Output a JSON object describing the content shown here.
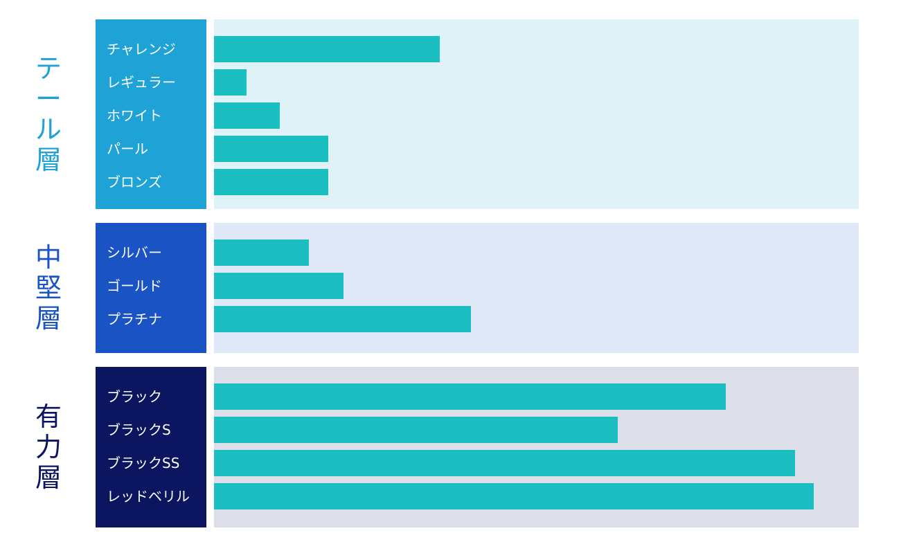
{
  "colors": {
    "bar": "#1bbfc1"
  },
  "chart_data": {
    "type": "bar",
    "orientation": "horizontal",
    "xlim": [
      0,
      100
    ],
    "groups": [
      {
        "title": "テール層",
        "title_color": "#1fa2d6",
        "label_bg": "#1fa2d6",
        "panel_bg": "#dff2f8",
        "categories": [
          "チャレンジ",
          "レギュラー",
          "ホワイト",
          "パール",
          "ブロンズ"
        ],
        "values": [
          35,
          5,
          10.2,
          17.7,
          17.7
        ]
      },
      {
        "title": "中堅層",
        "title_color": "#1a54c4",
        "label_bg": "#1a54c4",
        "panel_bg": "#dee8f6",
        "categories": [
          "シルバー",
          "ゴールド",
          "プラチナ"
        ],
        "values": [
          14.7,
          20.1,
          39.9
        ]
      },
      {
        "title": "有力層",
        "title_color": "#0b1560",
        "label_bg": "#0b1560",
        "panel_bg": "#dcdfea",
        "categories": [
          "ブラック",
          "ブラックS",
          "ブラックSS",
          "レッドベリル"
        ],
        "values": [
          79.4,
          62.6,
          90.1,
          93
        ]
      }
    ]
  }
}
